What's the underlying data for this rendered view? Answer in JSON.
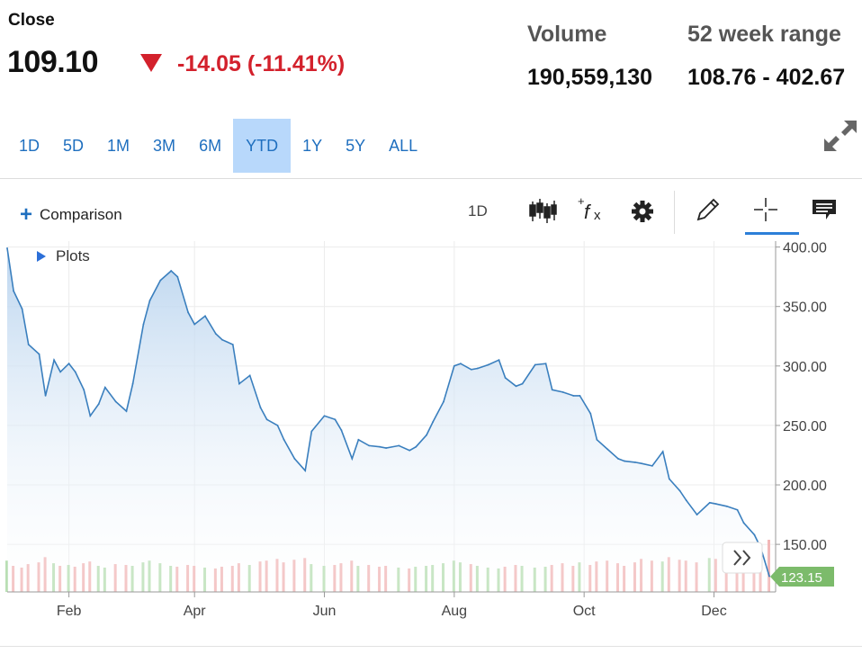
{
  "quote": {
    "close_label": "Close",
    "price": "109.10",
    "change": "-14.05 (-11.41%)",
    "volume_label": "Volume",
    "volume_value": "190,559,130",
    "range_label": "52 week range",
    "range_value": "108.76 - 402.67"
  },
  "ranges": [
    "1D",
    "5D",
    "1M",
    "3M",
    "6M",
    "YTD",
    "1Y",
    "5Y",
    "ALL"
  ],
  "active_range": "YTD",
  "toolbar": {
    "comparison_label": "Comparison",
    "interval_label": "1D",
    "plots_label": "Plots"
  },
  "icons": {
    "expand": "expand-icon",
    "candles": "candlestick-icon",
    "studies": "fx-icon",
    "settings": "gear-icon",
    "draw": "pencil-icon",
    "crosshair": "crosshair-icon",
    "comment": "comment-icon",
    "scroll": "chevron-double-right-icon"
  },
  "colors": {
    "line": "#3a7fbe",
    "area_top": "#b8d3ee",
    "down": "#d3212c",
    "last_price_badge": "#7cbb6b",
    "active_tab": "#b8d8fb",
    "link": "#1f6fbf"
  },
  "chart_data": {
    "type": "area",
    "x_ticks": [
      "Feb",
      "Apr",
      "Jun",
      "Aug",
      "Oct",
      "Dec"
    ],
    "y_ticks": [
      "400.00",
      "350.00",
      "300.00",
      "250.00",
      "200.00",
      "150.00"
    ],
    "ylim": [
      110,
      405
    ],
    "last_price_label": "123.15",
    "grid": true,
    "x": [
      "2022-01-03",
      "2022-01-06",
      "2022-01-10",
      "2022-01-13",
      "2022-01-18",
      "2022-01-21",
      "2022-01-25",
      "2022-01-28",
      "2022-02-01",
      "2022-02-04",
      "2022-02-08",
      "2022-02-11",
      "2022-02-15",
      "2022-02-18",
      "2022-02-23",
      "2022-02-28",
      "2022-03-03",
      "2022-03-08",
      "2022-03-11",
      "2022-03-16",
      "2022-03-21",
      "2022-03-24",
      "2022-03-29",
      "2022-04-01",
      "2022-04-06",
      "2022-04-11",
      "2022-04-14",
      "2022-04-19",
      "2022-04-22",
      "2022-04-27",
      "2022-05-02",
      "2022-05-05",
      "2022-05-10",
      "2022-05-13",
      "2022-05-18",
      "2022-05-23",
      "2022-05-26",
      "2022-06-01",
      "2022-06-06",
      "2022-06-09",
      "2022-06-14",
      "2022-06-17",
      "2022-06-22",
      "2022-06-27",
      "2022-06-30",
      "2022-07-06",
      "2022-07-11",
      "2022-07-14",
      "2022-07-19",
      "2022-07-22",
      "2022-07-27",
      "2022-08-01",
      "2022-08-04",
      "2022-08-09",
      "2022-08-12",
      "2022-08-17",
      "2022-08-22",
      "2022-08-25",
      "2022-08-30",
      "2022-09-02",
      "2022-09-08",
      "2022-09-13",
      "2022-09-16",
      "2022-09-21",
      "2022-09-26",
      "2022-09-29",
      "2022-10-04",
      "2022-10-07",
      "2022-10-12",
      "2022-10-17",
      "2022-10-20",
      "2022-10-25",
      "2022-10-28",
      "2022-11-02",
      "2022-11-07",
      "2022-11-10",
      "2022-11-15",
      "2022-11-18",
      "2022-11-23",
      "2022-11-29",
      "2022-12-02",
      "2022-12-07",
      "2022-12-12",
      "2022-12-15",
      "2022-12-20",
      "2022-12-23",
      "2022-12-27"
    ],
    "values": [
      399,
      363,
      348,
      318,
      310,
      275,
      305,
      295,
      302,
      295,
      280,
      258,
      268,
      282,
      270,
      262,
      285,
      335,
      355,
      372,
      380,
      375,
      345,
      335,
      342,
      327,
      322,
      318,
      285,
      292,
      265,
      255,
      250,
      238,
      222,
      212,
      245,
      258,
      255,
      246,
      222,
      238,
      233,
      232,
      231,
      233,
      229,
      232,
      242,
      253,
      270,
      300,
      302,
      297,
      298,
      301,
      305,
      290,
      283,
      285,
      301,
      302,
      280,
      278,
      275,
      275,
      260,
      238,
      230,
      222,
      220,
      219,
      218,
      216,
      228,
      205,
      195,
      187,
      175,
      185,
      184,
      182,
      179,
      168,
      158,
      147,
      123.15
    ],
    "volume": [
      36,
      30,
      28,
      32,
      34,
      40,
      33,
      30,
      31,
      29,
      33,
      35,
      30,
      28,
      32,
      31,
      30,
      34,
      36,
      33,
      30,
      29,
      31,
      30,
      28,
      27,
      29,
      30,
      33,
      31,
      35,
      36,
      38,
      34,
      37,
      39,
      32,
      30,
      31,
      33,
      36,
      30,
      31,
      29,
      30,
      28,
      27,
      29,
      30,
      31,
      33,
      36,
      34,
      32,
      30,
      28,
      27,
      29,
      31,
      30,
      28,
      29,
      31,
      33,
      30,
      34,
      31,
      35,
      36,
      33,
      30,
      34,
      38,
      36,
      35,
      40,
      37,
      36,
      34,
      39,
      38,
      37,
      40,
      42,
      45,
      55,
      60
    ]
  }
}
